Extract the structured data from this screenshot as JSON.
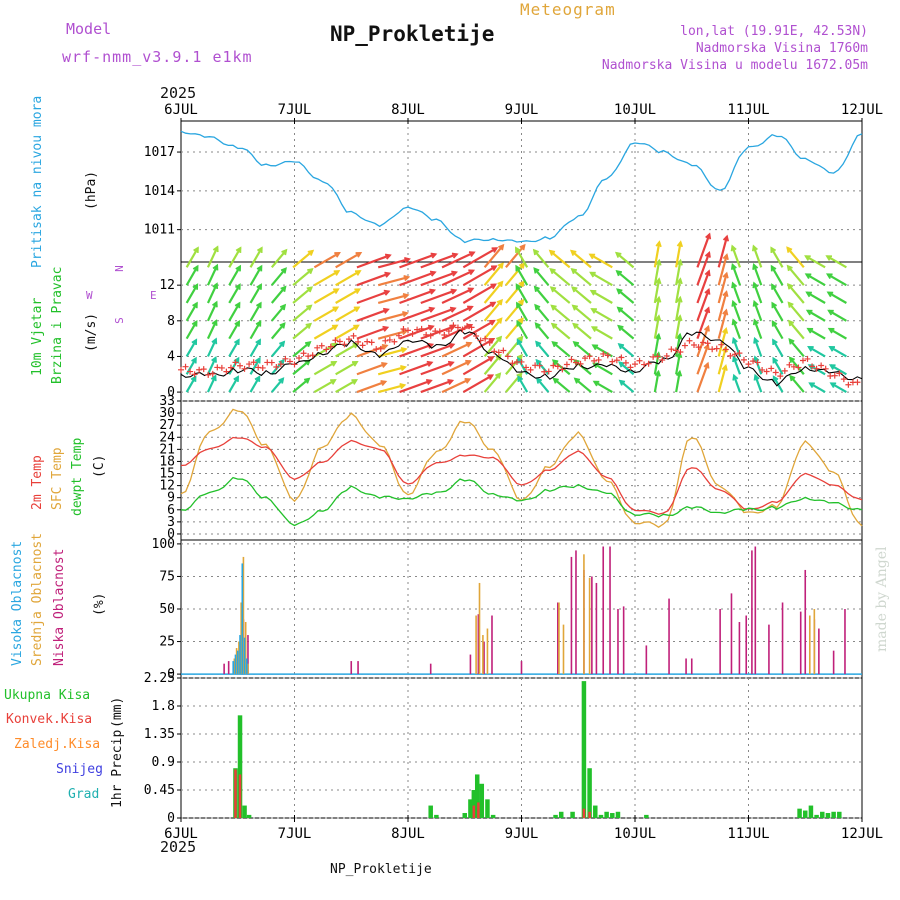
{
  "header": {
    "model_label": "Model",
    "model_name": "wrf-nmm_v3.9.1 e1km",
    "meteogram_label": "Meteogram",
    "station": "NP_Prokletije",
    "lonlat": "lon,lat (19.91E, 42.53N)",
    "elevation": "Nadmorska Visina 1760m",
    "model_elevation": "Nadmorska Visina u modelu 1672.05m",
    "year": "2025",
    "footer_station": "NP_Prokletije",
    "credit": "made by Angel"
  },
  "colors": {
    "pressure": "#2aa6e0",
    "temp2m": "#e8403a",
    "sfc": "#e0a63a",
    "dewpt": "#22c02a",
    "high_cloud": "#2aa6e0",
    "mid_cloud": "#e0a63a",
    "low_cloud": "#c0207a",
    "total_precip": "#22c02a",
    "conv_precip": "#e8403a",
    "frozen_precip": "#ff8c2a",
    "snow": "#4040e0",
    "graupel": "#20b0b0",
    "wind_label": "#22c02a",
    "compass": "#b050d0",
    "header_purple": "#b050d0",
    "header_orange": "#e0a63a"
  },
  "chart_data": [
    {
      "type": "line",
      "panel": "pressure",
      "ylabel": "Pritisak na nivou mora",
      "units": "(hPa)",
      "ylim": [
        1008.5,
        1019.4
      ],
      "yticks": [
        1011,
        1014,
        1017
      ],
      "x_days": [
        0,
        0.25,
        0.5,
        0.75,
        1,
        1.25,
        1.5,
        1.75,
        2,
        2.25,
        2.5,
        2.75,
        3,
        3.25,
        3.5,
        3.75,
        4,
        4.25,
        4.5,
        4.75,
        5,
        5.25,
        5.5,
        5.75,
        6
      ],
      "series": [
        {
          "values": [
            1018.6,
            1018.1,
            1017.4,
            1016.0,
            1016.2,
            1014.8,
            1012.3,
            1011.3,
            1012.8,
            1011.7,
            1010.1,
            1010.3,
            1010.0,
            1010.4,
            1012.0,
            1014.9,
            1017.8,
            1017.0,
            1016.0,
            1014.1,
            1017.3,
            1018.3,
            1016.5,
            1015.3,
            1018.4
          ]
        }
      ]
    },
    {
      "type": "line",
      "panel": "wind",
      "ylabel": "10m Vjetar",
      "ylabel2": "Brzina i Pravac",
      "units": "(m/s)",
      "compass": {
        "n": "N",
        "e": "E",
        "s": "S",
        "w": "W"
      },
      "ylim": [
        -1,
        14.6
      ],
      "yticks": [
        0,
        4,
        8,
        12
      ],
      "x_days": [
        0,
        0.25,
        0.5,
        0.75,
        1,
        1.25,
        1.5,
        1.75,
        2,
        2.25,
        2.5,
        2.75,
        3,
        3.25,
        3.5,
        3.75,
        4,
        4.25,
        4.5,
        4.75,
        5,
        5.25,
        5.5,
        5.75,
        6
      ],
      "series": [
        {
          "values": [
            2.0,
            1.8,
            2.5,
            2.2,
            3.0,
            4.5,
            5.5,
            4.0,
            6.0,
            5.0,
            6.8,
            4.5,
            2.0,
            1.8,
            3.0,
            2.8,
            2.5,
            3.5,
            6.5,
            6.0,
            2.5,
            1.0,
            2.8,
            2.0,
            1.5
          ]
        },
        {
          "values": [
            2.5,
            2.2,
            3.0,
            3.0,
            3.5,
            5.0,
            6.0,
            5.0,
            7.0,
            6.5,
            7.5,
            5.0,
            3.0,
            2.5,
            3.5,
            4.0,
            3.0,
            4.0,
            5.5,
            5.0,
            3.5,
            2.0,
            3.5,
            2.0,
            0.5
          ]
        }
      ],
      "arrow_rows": [
        0,
        2,
        4,
        6,
        8,
        10,
        12,
        14
      ],
      "arrow_dir_deg": [
        30,
        25,
        30,
        40,
        50,
        60,
        70,
        75,
        70,
        65,
        60,
        40,
        330,
        320,
        310,
        300,
        310,
        10,
        20,
        15,
        340,
        330,
        320,
        300,
        300
      ],
      "arrow_mag": [
        3,
        3,
        3,
        3,
        4,
        5,
        7,
        6,
        8,
        7,
        8,
        5,
        3,
        3,
        4,
        4,
        3,
        4,
        7,
        6,
        3,
        3,
        4,
        3,
        2
      ]
    },
    {
      "type": "line",
      "panel": "temperature",
      "ylabel": "2m Temp",
      "ylabel2": "SFC Temp",
      "ylabel3": "dewpt Temp",
      "units": "(C)",
      "ylim": [
        -1.5,
        33
      ],
      "yticks": [
        0,
        3,
        6,
        9,
        12,
        15,
        18,
        21,
        24,
        27,
        30,
        33
      ],
      "x_days": [
        0,
        0.25,
        0.5,
        0.75,
        1,
        1.25,
        1.5,
        1.75,
        2,
        2.25,
        2.5,
        2.75,
        3,
        3.25,
        3.5,
        3.75,
        4,
        4.25,
        4.5,
        4.75,
        5,
        5.25,
        5.5,
        5.75,
        6
      ],
      "series": [
        {
          "name": "2m Temp",
          "values": [
            17.0,
            21.0,
            24.0,
            21.5,
            13.5,
            18.0,
            23.0,
            21.0,
            12.5,
            17.5,
            19.5,
            19.0,
            12.0,
            16.0,
            20.5,
            14.0,
            6.0,
            5.0,
            16.5,
            11.0,
            6.0,
            8.0,
            15.0,
            12.0,
            8.5
          ]
        },
        {
          "name": "SFC Temp",
          "values": [
            10.0,
            25.0,
            31.0,
            22.0,
            8.0,
            22.0,
            29.5,
            22.0,
            10.0,
            20.0,
            28.0,
            21.0,
            8.0,
            17.0,
            25.0,
            13.0,
            3.0,
            2.0,
            24.0,
            12.0,
            5.0,
            7.0,
            23.0,
            15.0,
            2.0
          ]
        },
        {
          "name": "dewpt Temp",
          "values": [
            6.0,
            10.0,
            14.0,
            9.0,
            2.0,
            6.0,
            11.5,
            9.0,
            9.0,
            10.0,
            13.5,
            10.0,
            8.0,
            11.0,
            12.0,
            10.0,
            5.0,
            4.5,
            6.5,
            5.5,
            6.0,
            6.5,
            9.0,
            7.5,
            6.0
          ]
        }
      ]
    },
    {
      "type": "bar",
      "panel": "cloud",
      "ylabel": "Visoka Oblacnost",
      "ylabel2": "Srednja Oblacnost",
      "ylabel3": "Niska Oblacnost",
      "units": "(%)",
      "ylim": [
        -3,
        103
      ],
      "yticks": [
        0,
        25,
        50,
        75,
        100
      ],
      "series": [
        {
          "name": "Visoka Oblacnost",
          "points": [
            [
              0.46,
              10
            ],
            [
              0.48,
              15
            ],
            [
              0.5,
              18
            ],
            [
              0.52,
              30
            ],
            [
              0.54,
              85
            ],
            [
              0.56,
              28
            ],
            [
              0.58,
              12
            ]
          ]
        },
        {
          "name": "Srednja Oblacnost",
          "points": [
            [
              0.47,
              12
            ],
            [
              0.49,
              20
            ],
            [
              0.51,
              25
            ],
            [
              0.53,
              55
            ],
            [
              0.55,
              90
            ],
            [
              0.57,
              40
            ],
            [
              0.59,
              8
            ],
            [
              2.6,
              45
            ],
            [
              2.63,
              70
            ],
            [
              2.66,
              30
            ],
            [
              2.7,
              35
            ],
            [
              3.33,
              55
            ],
            [
              3.37,
              38
            ],
            [
              3.55,
              92
            ],
            [
              3.6,
              74
            ],
            [
              5.54,
              45
            ],
            [
              5.58,
              50
            ]
          ]
        },
        {
          "name": "Niska Oblacnost",
          "points": [
            [
              0.38,
              8
            ],
            [
              0.42,
              10
            ],
            [
              0.55,
              42
            ],
            [
              0.59,
              30
            ],
            [
              1.5,
              10
            ],
            [
              1.56,
              10
            ],
            [
              2.2,
              8
            ],
            [
              2.55,
              15
            ],
            [
              2.62,
              46
            ],
            [
              2.67,
              25
            ],
            [
              2.74,
              45
            ],
            [
              3.0,
              10
            ],
            [
              3.32,
              55
            ],
            [
              3.44,
              90
            ],
            [
              3.48,
              95
            ],
            [
              3.55,
              80
            ],
            [
              3.62,
              75
            ],
            [
              3.66,
              70
            ],
            [
              3.72,
              98
            ],
            [
              3.78,
              98
            ],
            [
              3.85,
              50
            ],
            [
              3.9,
              52
            ],
            [
              4.1,
              22
            ],
            [
              4.3,
              58
            ],
            [
              4.45,
              12
            ],
            [
              4.5,
              12
            ],
            [
              4.75,
              50
            ],
            [
              4.85,
              62
            ],
            [
              4.92,
              40
            ],
            [
              4.98,
              45
            ],
            [
              5.03,
              95
            ],
            [
              5.06,
              98
            ],
            [
              5.18,
              38
            ],
            [
              5.3,
              55
            ],
            [
              5.46,
              48
            ],
            [
              5.5,
              80
            ],
            [
              5.58,
              42
            ],
            [
              5.62,
              35
            ],
            [
              5.75,
              18
            ],
            [
              5.85,
              50
            ]
          ]
        }
      ]
    },
    {
      "type": "bar",
      "panel": "precip",
      "ylabel": "1hr Precip",
      "units": "(mm)",
      "legend": [
        "Ukupna Kisa",
        "Konvek.Kisa",
        "Zaledj.Kisa",
        "Snijeg",
        "Grad"
      ],
      "ylim": [
        0,
        2.25
      ],
      "yticks": [
        0,
        0.45,
        0.9,
        1.35,
        1.8,
        2.25
      ],
      "ytick_labels": [
        "0",
        "0.45",
        "0.9",
        "1.35",
        "1.8",
        "2.25"
      ],
      "series": [
        {
          "name": "Ukupna Kisa",
          "points": [
            [
              0.48,
              0.8
            ],
            [
              0.52,
              1.65
            ],
            [
              0.56,
              0.2
            ],
            [
              0.6,
              0.05
            ],
            [
              2.2,
              0.2
            ],
            [
              2.25,
              0.05
            ],
            [
              2.5,
              0.08
            ],
            [
              2.55,
              0.3
            ],
            [
              2.58,
              0.45
            ],
            [
              2.61,
              0.7
            ],
            [
              2.65,
              0.55
            ],
            [
              2.7,
              0.3
            ],
            [
              2.75,
              0.05
            ],
            [
              3.3,
              0.05
            ],
            [
              3.35,
              0.1
            ],
            [
              3.45,
              0.1
            ],
            [
              3.55,
              2.2
            ],
            [
              3.6,
              0.8
            ],
            [
              3.65,
              0.2
            ],
            [
              3.7,
              0.05
            ],
            [
              3.75,
              0.1
            ],
            [
              3.8,
              0.08
            ],
            [
              3.85,
              0.1
            ],
            [
              4.1,
              0.05
            ],
            [
              5.45,
              0.15
            ],
            [
              5.5,
              0.12
            ],
            [
              5.55,
              0.2
            ],
            [
              5.6,
              0.05
            ],
            [
              5.65,
              0.1
            ],
            [
              5.7,
              0.08
            ],
            [
              5.75,
              0.1
            ],
            [
              5.8,
              0.1
            ]
          ]
        },
        {
          "name": "Konvek.Kisa",
          "points": [
            [
              0.48,
              0.78
            ],
            [
              0.52,
              0.7
            ],
            [
              2.58,
              0.2
            ],
            [
              2.62,
              0.25
            ],
            [
              3.55,
              0.15
            ],
            [
              3.6,
              0.1
            ]
          ]
        }
      ]
    }
  ],
  "x_axis": {
    "year_top": "2025",
    "year_bottom": "2025",
    "day_labels": [
      "6JUL",
      "7JUL",
      "8JUL",
      "9JUL",
      "10JUL",
      "11JUL",
      "12JUL"
    ]
  }
}
